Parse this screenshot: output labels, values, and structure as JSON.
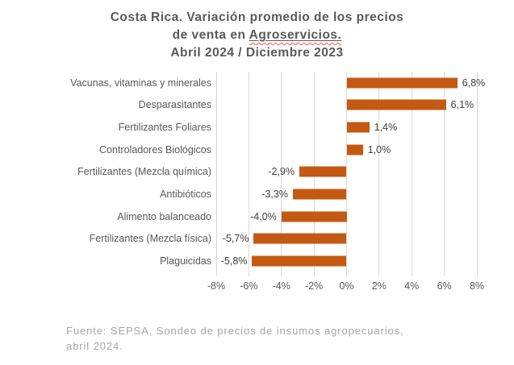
{
  "title": {
    "line1": "Costa Rica. Variación promedio de los precios",
    "line2_prefix": "de venta en ",
    "line2_underlined": "Agroservicios.",
    "line3": "Abril 2024 / Diciembre 2023"
  },
  "chart_data": {
    "type": "bar",
    "orientation": "horizontal",
    "title": "Costa Rica. Variación promedio de los precios de venta en Agroservicios. Abril 2024 / Diciembre 2023",
    "categories": [
      "Vacunas, vitaminas y minerales",
      "Desparasitantes",
      "Fertilizantes Foliares",
      "Controladores Biológicos",
      "Fertilizantes (Mezcla química)",
      "Antibióticos",
      "Alimento balanceado",
      "Fertilizantes (Mezcla física)",
      "Plaguicidas"
    ],
    "values": [
      6.8,
      6.1,
      1.4,
      1.0,
      -2.9,
      -3.3,
      -4.0,
      -5.7,
      -5.8
    ],
    "data_labels": [
      "6,8%",
      "6,1%",
      "1,4%",
      "1,0%",
      "-2,9%",
      "-3,3%",
      "-4,0%",
      "-5,7%",
      "-5,8%"
    ],
    "x_tick_labels": [
      "-8%",
      "-6%",
      "-4%",
      "-2%",
      "0%",
      "2%",
      "4%",
      "6%",
      "8%"
    ],
    "x_tick_values": [
      -8,
      -6,
      -4,
      -2,
      0,
      2,
      4,
      6,
      8
    ],
    "xlim": [
      -8,
      8
    ],
    "xlabel": "",
    "ylabel": "",
    "grid": true,
    "legend": false,
    "bar_color": "#c45911",
    "gridline_color": "#d9d9d9",
    "label_color": "#595959",
    "data_label_color": "#404040"
  },
  "footer": {
    "line1": "Fuente: SEPSA, Sondeo de precios de insumos agropecuarios,",
    "line2": "abril 2024."
  }
}
